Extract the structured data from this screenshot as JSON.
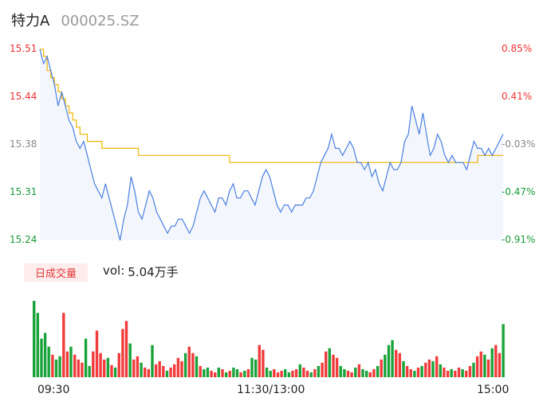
{
  "header": {
    "name": "特力A",
    "code": "000025.SZ"
  },
  "price_axis_left": [
    "15.51",
    "15.44",
    "15.38",
    "15.31",
    "15.24"
  ],
  "price_axis_right": [
    "0.85%",
    "0.41%",
    "-0.03%",
    "-0.47%",
    "-0.91%"
  ],
  "time_labels": [
    "09:30",
    "11:30/13:00",
    "15:00"
  ],
  "volume_panel": {
    "badge": "日成交量",
    "vol_label": "vol:",
    "vol_value": "5.04万手"
  },
  "colors": {
    "price_line": "#4a7fe0",
    "avg_line": "#f0b400",
    "fill": "#f3f6fd",
    "up": "#f03c3c",
    "down": "#1aa33a",
    "axis_up": "#e33",
    "axis_down": "#1a9a3a",
    "axis_neutral": "#888"
  },
  "chart_data": [
    {
      "type": "line",
      "ylim": [
        15.24,
        15.51
      ],
      "series": [
        {
          "values": [
            15.51,
            15.49,
            15.5,
            15.48,
            15.46,
            15.43,
            15.45,
            15.43,
            15.41,
            15.4,
            15.38,
            15.37,
            15.38,
            15.36,
            15.34,
            15.32,
            15.31,
            15.3,
            15.32,
            15.3,
            15.28,
            15.26,
            15.24,
            15.27,
            15.29,
            15.33,
            15.31,
            15.28,
            15.27,
            15.29,
            15.31,
            15.3,
            15.28,
            15.27,
            15.26,
            15.25,
            15.26,
            15.26,
            15.27,
            15.27,
            15.26,
            15.25,
            15.26,
            15.28,
            15.3,
            15.31,
            15.3,
            15.29,
            15.28,
            15.3,
            15.3,
            15.29,
            15.31,
            15.32,
            15.3,
            15.3,
            15.31,
            15.31,
            15.3,
            15.29,
            15.31,
            15.33,
            15.34,
            15.33,
            15.31,
            15.29,
            15.28,
            15.29,
            15.29,
            15.28,
            15.29,
            15.29,
            15.29,
            15.3,
            15.3,
            15.31,
            15.33,
            15.35,
            15.36,
            15.37,
            15.39,
            15.37,
            15.37,
            15.36,
            15.37,
            15.38,
            15.37,
            15.35,
            15.35,
            15.34,
            15.35,
            15.33,
            15.34,
            15.32,
            15.31,
            15.33,
            15.35,
            15.34,
            15.34,
            15.35,
            15.38,
            15.39,
            15.43,
            15.41,
            15.39,
            15.42,
            15.39,
            15.36,
            15.37,
            15.39,
            15.38,
            15.36,
            15.35,
            15.36,
            15.35,
            15.35,
            15.35,
            15.34,
            15.36,
            15.38,
            15.37,
            15.37,
            15.36,
            15.37,
            15.36,
            15.37,
            15.38,
            15.39
          ]
        },
        {
          "values": [
            15.51,
            15.5,
            15.48,
            15.47,
            15.46,
            15.45,
            15.44,
            15.43,
            15.42,
            15.41,
            15.4,
            15.39,
            15.39,
            15.38,
            15.38,
            15.38,
            15.38,
            15.37,
            15.37,
            15.37,
            15.37,
            15.37,
            15.37,
            15.37,
            15.37,
            15.37,
            15.37,
            15.36,
            15.36,
            15.36,
            15.36,
            15.36,
            15.36,
            15.36,
            15.36,
            15.36,
            15.36,
            15.36,
            15.36,
            15.36,
            15.36,
            15.36,
            15.36,
            15.36,
            15.36,
            15.36,
            15.36,
            15.36,
            15.36,
            15.36,
            15.36,
            15.36,
            15.35,
            15.35,
            15.35,
            15.35,
            15.35,
            15.35,
            15.35,
            15.35,
            15.35,
            15.35,
            15.35,
            15.35,
            15.35,
            15.35,
            15.35,
            15.35,
            15.35,
            15.35,
            15.35,
            15.35,
            15.35,
            15.35,
            15.35,
            15.35,
            15.35,
            15.35,
            15.35,
            15.35,
            15.35,
            15.35,
            15.35,
            15.35,
            15.35,
            15.35,
            15.35,
            15.35,
            15.35,
            15.35,
            15.35,
            15.35,
            15.35,
            15.35,
            15.35,
            15.35,
            15.35,
            15.35,
            15.35,
            15.35,
            15.35,
            15.35,
            15.35,
            15.35,
            15.35,
            15.35,
            15.35,
            15.35,
            15.35,
            15.35,
            15.35,
            15.35,
            15.35,
            15.35,
            15.35,
            15.35,
            15.35,
            15.35,
            15.35,
            15.35,
            15.36,
            15.36,
            15.36,
            15.36,
            15.36,
            15.36,
            15.36,
            15.36
          ]
        }
      ]
    },
    {
      "type": "bar",
      "series": [
        {
          "values": [
            95,
            80,
            48,
            55,
            38,
            28,
            22,
            26,
            80,
            32,
            38,
            28,
            22,
            18,
            48,
            14,
            32,
            58,
            30,
            22,
            24,
            15,
            12,
            30,
            60,
            70,
            42,
            22,
            26,
            18,
            12,
            10,
            40,
            16,
            20,
            14,
            8,
            12,
            16,
            24,
            20,
            30,
            38,
            30,
            26,
            14,
            10,
            12,
            8,
            6,
            12,
            10,
            6,
            8,
            12,
            10,
            6,
            8,
            10,
            24,
            22,
            40,
            34,
            12,
            8,
            10,
            6,
            8,
            10,
            6,
            8,
            10,
            16,
            12,
            8,
            6,
            10,
            14,
            18,
            32,
            36,
            28,
            24,
            14,
            10,
            8,
            6,
            12,
            16,
            10,
            8,
            6,
            10,
            14,
            22,
            28,
            40,
            46,
            34,
            30,
            20,
            14,
            10,
            8,
            12,
            14,
            18,
            22,
            20,
            26,
            16,
            12,
            8,
            10,
            8,
            12,
            10,
            8,
            14,
            18,
            26,
            32,
            28,
            22,
            36,
            40,
            30,
            66
          ],
          "up": [
            0,
            0,
            0,
            0,
            0,
            1,
            0,
            0,
            1,
            1,
            0,
            1,
            1,
            1,
            0,
            0,
            1,
            1,
            1,
            1,
            0,
            1,
            0,
            1,
            1,
            1,
            0,
            1,
            1,
            0,
            1,
            1,
            0,
            1,
            1,
            1,
            0,
            1,
            1,
            1,
            1,
            0,
            1,
            1,
            0,
            1,
            0,
            0,
            1,
            1,
            0,
            1,
            0,
            1,
            0,
            0,
            1,
            0,
            1,
            0,
            0,
            1,
            1,
            0,
            0,
            1,
            1,
            1,
            0,
            0,
            1,
            1,
            0,
            1,
            1,
            0,
            1,
            0,
            1,
            1,
            0,
            1,
            1,
            0,
            0,
            1,
            1,
            0,
            1,
            0,
            0,
            1,
            1,
            0,
            1,
            0,
            0,
            0,
            1,
            1,
            0,
            1,
            1,
            0,
            1,
            0,
            1,
            1,
            0,
            1,
            0,
            1,
            1,
            0,
            1,
            1,
            0,
            1,
            1,
            0,
            1,
            1,
            0,
            1,
            0,
            1,
            1,
            0
          ]
        }
      ]
    }
  ]
}
